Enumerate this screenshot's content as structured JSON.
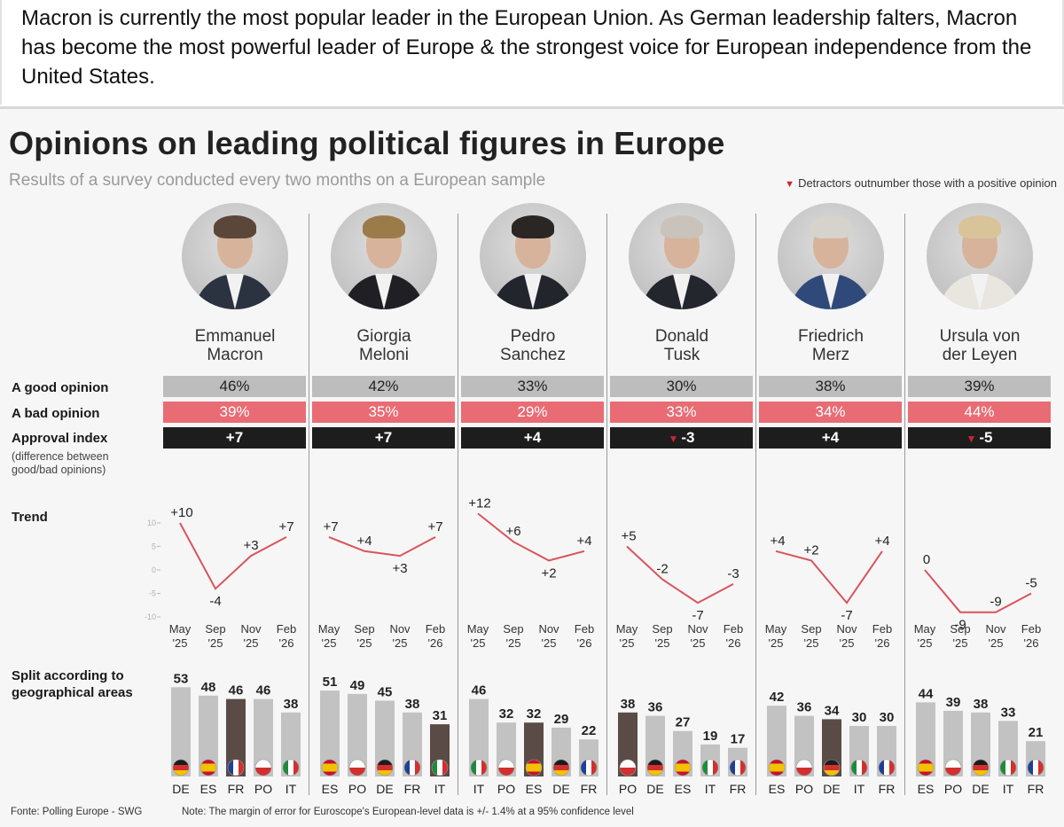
{
  "caption": "Macron is currently the most popular leader in the European Union. As German leadership falters, Macron has become the most powerful leader of Europe & the strongest voice for European independence from the United States.",
  "colors": {
    "good": "#bdbdbd",
    "bad": "#e96c74",
    "index": "#1d1d1d",
    "line": "#d9545c",
    "bar": "#c2c2c2",
    "bar_highlight": "#5a4b47",
    "triangle": "#c8272f"
  },
  "chart_data": {
    "type": "table",
    "title": "Opinions on leading political figures in Europe",
    "subtitle": "Results of a survey conducted every two months on a European sample",
    "legend_note": "Detractors outnumber those with a positive opinion",
    "row_labels": {
      "good": "A good opinion",
      "bad": "A bad opinion",
      "index": "Approval index",
      "index_note": "(difference between good/bad opinions)",
      "trend": "Trend",
      "split": "Split according to geographical areas"
    },
    "trend_axis": {
      "ticks": [
        "10",
        "5",
        "0",
        "-5",
        "-10"
      ],
      "ylim": [
        -10,
        10
      ]
    },
    "months": [
      "May",
      "Sep",
      "Nov",
      "Feb"
    ],
    "years": [
      "'25",
      "'25",
      "'25",
      "'26"
    ],
    "leaders": [
      {
        "first": "Emmanuel",
        "last": "Macron",
        "good": "46%",
        "bad": "39%",
        "index": "+7",
        "negative": false,
        "hair": "#5b463a",
        "suit": "#2b3240",
        "trend": [
          10,
          -4,
          3,
          7
        ],
        "trend_labels": [
          "+10",
          "-4",
          "+3",
          "+7"
        ],
        "regions": [
          "DE",
          "ES",
          "FR",
          "PO",
          "IT"
        ],
        "region_values": [
          53,
          48,
          46,
          46,
          38
        ],
        "highlight": 2
      },
      {
        "first": "Giorgia",
        "last": "Meloni",
        "good": "42%",
        "bad": "35%",
        "index": "+7",
        "negative": false,
        "hair": "#9c7b4a",
        "suit": "#1f1f24",
        "trend": [
          7,
          4,
          3,
          7
        ],
        "trend_labels": [
          "+7",
          "+4",
          "+3",
          "+7"
        ],
        "regions": [
          "ES",
          "PO",
          "DE",
          "FR",
          "IT"
        ],
        "region_values": [
          51,
          49,
          45,
          38,
          31
        ],
        "highlight": 4
      },
      {
        "first": "Pedro",
        "last": "Sanchez",
        "good": "33%",
        "bad": "29%",
        "index": "+4",
        "negative": false,
        "hair": "#2a2624",
        "suit": "#23252c",
        "trend": [
          12,
          6,
          2,
          4
        ],
        "trend_labels": [
          "+12",
          "+6",
          "+2",
          "+4"
        ],
        "regions": [
          "IT",
          "PO",
          "ES",
          "DE",
          "FR"
        ],
        "region_values": [
          46,
          32,
          32,
          29,
          22
        ],
        "highlight": 2
      },
      {
        "first": "Donald",
        "last": "Tusk",
        "good": "30%",
        "bad": "33%",
        "index": "-3",
        "negative": true,
        "hair": "#c9c3bb",
        "suit": "#24262e",
        "trend": [
          5,
          -2,
          -7,
          -3
        ],
        "trend_labels": [
          "+5",
          "-2",
          "-7",
          "-3"
        ],
        "regions": [
          "PO",
          "DE",
          "ES",
          "IT",
          "FR"
        ],
        "region_values": [
          38,
          36,
          27,
          19,
          17
        ],
        "highlight": 0
      },
      {
        "first": "Friedrich",
        "last": "Merz",
        "good": "38%",
        "bad": "34%",
        "index": "+4",
        "negative": false,
        "hair": "#d6d2cc",
        "suit": "#2f4a7a",
        "trend": [
          4,
          2,
          -7,
          4
        ],
        "trend_labels": [
          "+4",
          "+2",
          "-7",
          "+4"
        ],
        "regions": [
          "ES",
          "PO",
          "DE",
          "IT",
          "FR"
        ],
        "region_values": [
          42,
          36,
          34,
          30,
          30
        ],
        "highlight": 2
      },
      {
        "first": "Ursula von",
        "last": "der Leyen",
        "good": "39%",
        "bad": "44%",
        "index": "-5",
        "negative": true,
        "hair": "#d9c49a",
        "suit": "#e9e6e0",
        "trend": [
          0,
          -9,
          -9,
          -5
        ],
        "trend_labels": [
          "0",
          "-9",
          "-9",
          "-5"
        ],
        "regions": [
          "ES",
          "PO",
          "DE",
          "IT",
          "FR"
        ],
        "region_values": [
          44,
          39,
          38,
          33,
          21
        ],
        "highlight": -1
      }
    ]
  },
  "flags": {
    "DE": [
      "#1c1c1c",
      "#d32f2f",
      "#f2c200"
    ],
    "ES": [
      "#c8102e",
      "#f2c200",
      "#c8102e"
    ],
    "FR": [
      "#1f3e96",
      "#ffffff",
      "#d32f2f"
    ],
    "PO": [
      "#ffffff",
      "#d32f2f"
    ],
    "IT": [
      "#1f8a3a",
      "#ffffff",
      "#d32f2f"
    ]
  },
  "footer": {
    "source": "Fonte: Polling Europe - SWG",
    "note": "Note: The margin of error for Euroscope's European-level data is +/- 1.4% at a 95% confidence level"
  }
}
